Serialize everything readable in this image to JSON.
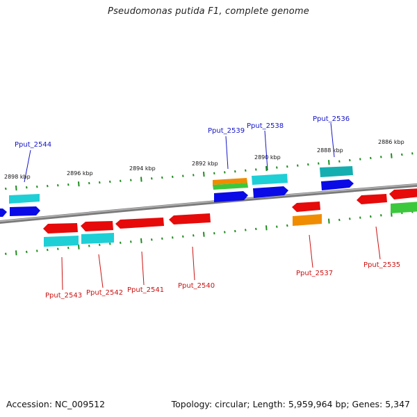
{
  "title": "Pseudomonas putida F1, complete genome",
  "footer": {
    "accession": "Accession: NC_009512",
    "topology": "Topology: circular; Length: 5,959,964 bp; Genes: 5,347"
  },
  "colors": {
    "backbone": "#8a8a8a",
    "tick": "#1e8c1e",
    "top_label": "#1414c8",
    "bottom_label": "#cc1010",
    "blue": "#0a0ae6",
    "red": "#e60a0a",
    "cyan": "#1ecfd6",
    "teal": "#14aeb0",
    "orange": "#f08c00",
    "green": "#3cc83c"
  },
  "kbp_labels": [
    "2898 kbp",
    "2896 kbp",
    "2894 kbp",
    "2892 kbp",
    "2890 kbp",
    "2888 kbp",
    "2886 kbp"
  ],
  "gene_labels_top": [
    "Pput_2544",
    "Pput_2539",
    "Pput_2538",
    "Pput_2536"
  ],
  "gene_labels_bottom": [
    "Pput_2543",
    "Pput_2542",
    "Pput_2541",
    "Pput_2540",
    "Pput_2537",
    "Pput_2535"
  ]
}
